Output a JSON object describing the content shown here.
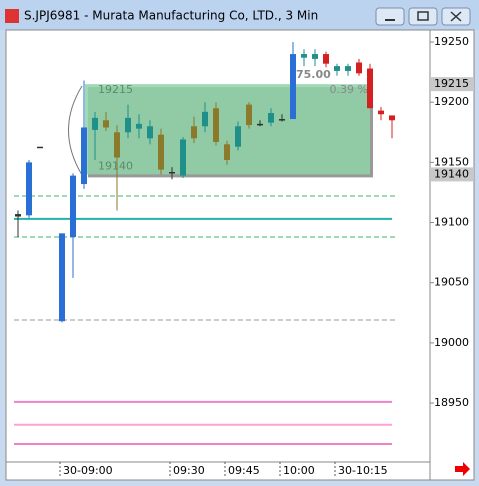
{
  "chart_data": {
    "type": "candlestick",
    "title": "S.JPJ6981 - Murata Manufacturing Co, LTD., 3 Min",
    "categories": [
      null,
      null,
      null,
      null,
      "30-09:00",
      null,
      null,
      null,
      null,
      null,
      null,
      null,
      null,
      null,
      "09:30",
      null,
      null,
      null,
      null,
      "09:45",
      null,
      null,
      null,
      null,
      "10:00",
      null,
      null,
      null,
      null,
      "30-10:15",
      null,
      null,
      null,
      null,
      null
    ],
    "open": [
      19105,
      19106,
      19163,
      null,
      19091,
      19088,
      19132,
      19177,
      19185,
      19175,
      19175,
      19178,
      19170,
      19173,
      19141,
      19139,
      19180,
      19180,
      19195,
      19165,
      19163,
      19198,
      19182,
      19183,
      19186,
      19186,
      19237,
      19236,
      19240,
      19226,
      19226,
      19233,
      19228,
      19193,
      19189
    ],
    "high": [
      19110,
      19152,
      19163,
      null,
      19091,
      19141,
      19218,
      19192,
      19192,
      19181,
      19198,
      19190,
      19185,
      19178,
      19146,
      19171,
      19188,
      19200,
      19200,
      19168,
      19184,
      19200,
      19185,
      19195,
      19190,
      19250,
      19244,
      19244,
      19242,
      19232,
      19232,
      19236,
      19232,
      19196,
      19189
    ],
    "low": [
      19088,
      19104,
      19163,
      null,
      19017,
      19054,
      19128,
      19152,
      19176,
      19110,
      19170,
      19170,
      19165,
      19140,
      19136,
      19137,
      19166,
      19175,
      19164,
      19148,
      19160,
      19178,
      19180,
      19180,
      19184,
      19186,
      19230,
      19230,
      19229,
      19222,
      19222,
      19222,
      19195,
      19185,
      19170
    ],
    "close": [
      19107,
      19150,
      19163,
      null,
      19018,
      19139,
      19179,
      19187,
      19179,
      19154,
      19187,
      19182,
      19180,
      19144,
      19142,
      19169,
      19170,
      19192,
      19167,
      19152,
      19180,
      19181,
      19182,
      19191,
      19186,
      19240,
      19240,
      19240,
      19232,
      19230,
      19230,
      19224,
      19195,
      19190,
      19185
    ],
    "colors": [
      "#303030",
      "#2a6fd6",
      "#303030",
      null,
      "#2a6fd6",
      "#2a6fd6",
      "#2a6fd6",
      "#1f8f8a",
      "#8a7a2a",
      "#8a7a2a",
      "#1f8f8a",
      "#1f8f8a",
      "#1f8f8a",
      "#8a7a2a",
      "#303030",
      "#1f8f8a",
      "#8a7a2a",
      "#1f8f8a",
      "#8a7a2a",
      "#8a7a2a",
      "#1f8f8a",
      "#8a7a2a",
      "#303030",
      "#1f8f8a",
      "#303030",
      "#2a6fd6",
      "#1f8f8a",
      "#1f8f8a",
      "#d42020",
      "#1f8f8a",
      "#1f8f8a",
      "#d42020",
      "#d42020",
      "#d42020",
      "#d42020"
    ],
    "ylim": [
      18901,
      19260
    ],
    "yticks": [
      18950,
      19000,
      19050,
      19100,
      19150,
      19200,
      19250
    ],
    "markers": [
      19215,
      19140
    ],
    "box": {
      "top": 19215,
      "bottom": 19140,
      "color": "#8fd3a8"
    },
    "annotations": [
      "75.00",
      "0.39 %"
    ],
    "levels": [
      {
        "value": 19103,
        "color": "#20b2aa",
        "dash": false
      },
      {
        "value": 19122,
        "color": "#3cb371",
        "dash": true
      },
      {
        "value": 19088,
        "color": "#3cb371",
        "dash": true
      },
      {
        "value": 19019,
        "color": "#999999",
        "dash": true
      },
      {
        "value": 18951,
        "color": "#ee82c8",
        "dash": false
      },
      {
        "value": 18932,
        "color": "#ffa0d8",
        "dash": false
      },
      {
        "value": 18916,
        "color": "#ee82c8",
        "dash": false
      }
    ]
  }
}
